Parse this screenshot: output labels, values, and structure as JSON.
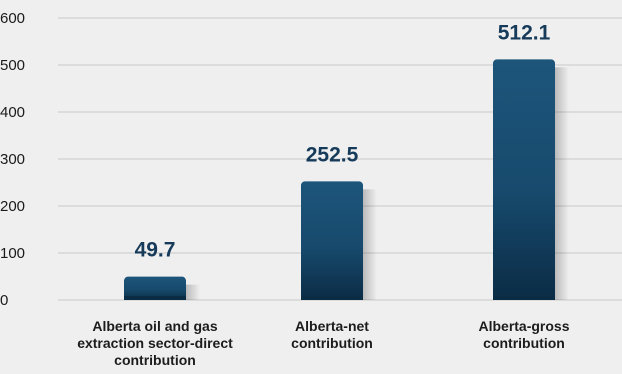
{
  "chart_data": {
    "type": "bar",
    "categories": [
      [
        "Alberta oil and gas",
        "extraction sector-direct",
        "contribution"
      ],
      [
        "Alberta-net",
        "contribution"
      ],
      [
        "Alberta-gross",
        "contribution"
      ]
    ],
    "values": [
      49.7,
      252.5,
      512.1
    ],
    "data_labels": [
      "49.7",
      "252.5",
      "512.1"
    ],
    "yticks": [
      "0",
      "100",
      "200",
      "300",
      "400",
      "500",
      "600"
    ],
    "ylim": [
      0,
      600
    ],
    "grid": true,
    "title": "",
    "xlabel": "",
    "ylabel": ""
  },
  "colors": {
    "background": "#efefef",
    "bar_top": "#1d557a",
    "bar_bottom": "#0b2c45",
    "label": "#163a5a",
    "grid": "#c9c9c9",
    "axis_text": "#1a1a1a"
  }
}
